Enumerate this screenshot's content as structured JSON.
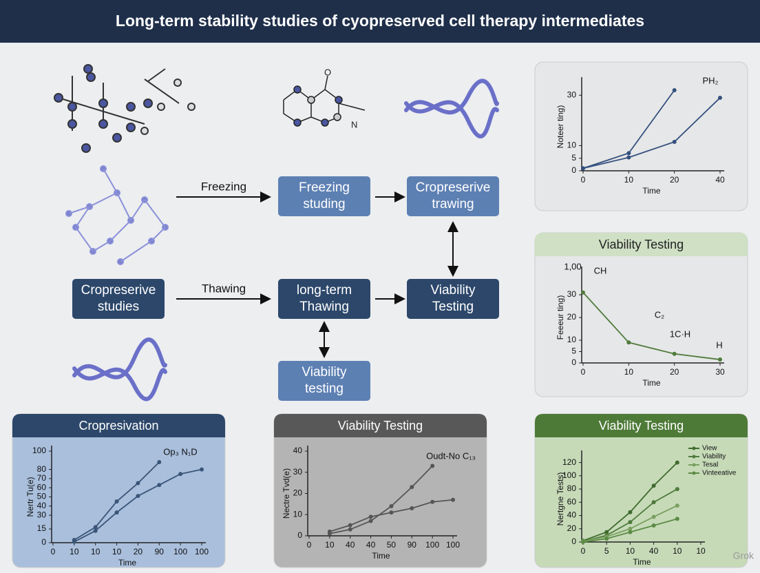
{
  "header": {
    "title": "Long-term stability studies of cyopreserved cell therapy intermediates"
  },
  "diagram": {
    "nodes": [
      {
        "lines": [
          "Freezing",
          "studing"
        ]
      },
      {
        "lines": [
          "Cropreserive",
          "trawing"
        ]
      },
      {
        "lines": [
          "Cropreserive",
          "studies"
        ]
      },
      {
        "lines": [
          "long-term",
          "Thawing"
        ]
      },
      {
        "lines": [
          "Viability",
          "Testing"
        ]
      },
      {
        "lines": [
          "Viability",
          "testing"
        ]
      }
    ],
    "edge_labels": [
      "Freezing",
      "Thawing"
    ]
  },
  "chart_data": [
    {
      "type": "line",
      "y_label": "Noteer ting)",
      "x_label": "Time",
      "categories": [
        "0",
        "10",
        "20",
        "40"
      ],
      "series": [
        {
          "color": "#34507e",
          "values": [
            1,
            7,
            32,
            null
          ]
        },
        {
          "color": "#34507e",
          "values": [
            1,
            5.3,
            11.5,
            29
          ]
        }
      ],
      "ylim": [
        0,
        35
      ],
      "yticks": [
        0,
        5,
        10,
        30
      ],
      "annotations": [
        "PH₂"
      ]
    },
    {
      "type": "line",
      "title": "Viability Testing",
      "y_label": "Feeeur ting)",
      "x_label": "Time",
      "categories": [
        "0",
        "10",
        "20",
        "30"
      ],
      "series": [
        {
          "color": "#4f7a3c",
          "values": [
            31,
            9,
            4,
            1.5
          ]
        }
      ],
      "ylim": [
        0,
        40
      ],
      "yticks": [
        0,
        5,
        10,
        20,
        30
      ],
      "annotations": [
        "1,00",
        "CH",
        "C₂",
        "1C·H",
        "H"
      ]
    },
    {
      "type": "line",
      "title": "Cropresivation",
      "y_label": "Nertr Tu(e)",
      "x_label": "Time",
      "categories": [
        "0",
        "10",
        "10",
        "10",
        "20",
        "90",
        "100",
        "100"
      ],
      "series": [
        {
          "color": "#3a5578",
          "values": [
            null,
            3,
            17,
            45,
            65,
            88,
            null,
            null
          ]
        },
        {
          "color": "#3a5578",
          "values": [
            null,
            1,
            13,
            33,
            51,
            63,
            75,
            80
          ]
        }
      ],
      "ylim": [
        0,
        100
      ],
      "yticks": [
        0,
        15,
        30,
        40,
        50,
        60,
        70,
        80,
        100
      ],
      "annotations": [
        "Op₃ N₁D"
      ]
    },
    {
      "type": "line",
      "title": "Viability Testing",
      "y_label": "Nectre Tvd(e)",
      "x_label": "Time",
      "categories": [
        "0",
        "10",
        "40",
        "40",
        "50",
        "90",
        "100",
        "100"
      ],
      "series": [
        {
          "color": "#555555",
          "values": [
            null,
            1,
            3,
            7,
            14,
            23,
            33,
            null
          ]
        },
        {
          "color": "#555555",
          "values": [
            null,
            2,
            5,
            9,
            11,
            13,
            16,
            17
          ]
        }
      ],
      "ylim": [
        0,
        40
      ],
      "yticks": [
        0,
        10,
        20,
        30,
        40
      ],
      "annotations": [
        "Oudt-No C₁₃"
      ]
    },
    {
      "type": "line",
      "title": "Viability Testing",
      "y_label": "Nertgne Tests)",
      "x_label": "Time",
      "categories": [
        "0",
        "5",
        "10",
        "40",
        "10",
        "10"
      ],
      "series": [
        {
          "name": "View",
          "color": "#3f6b2e",
          "values": [
            2,
            15,
            45,
            85,
            120,
            null
          ]
        },
        {
          "name": "Viability",
          "color": "#4f7a3c",
          "values": [
            1,
            10,
            30,
            60,
            80,
            null
          ]
        },
        {
          "name": "Tesal",
          "color": "#7aa060",
          "values": [
            1,
            8,
            20,
            38,
            55,
            null
          ]
        },
        {
          "name": "Vinteeative",
          "color": "#5c8a45",
          "values": [
            0,
            5,
            15,
            25,
            35,
            null
          ]
        }
      ],
      "ylim": [
        0,
        130
      ],
      "yticks": [
        0,
        20,
        40,
        60,
        80,
        100,
        120
      ],
      "annotations": []
    }
  ],
  "footer": {
    "watermark": "Grok"
  }
}
